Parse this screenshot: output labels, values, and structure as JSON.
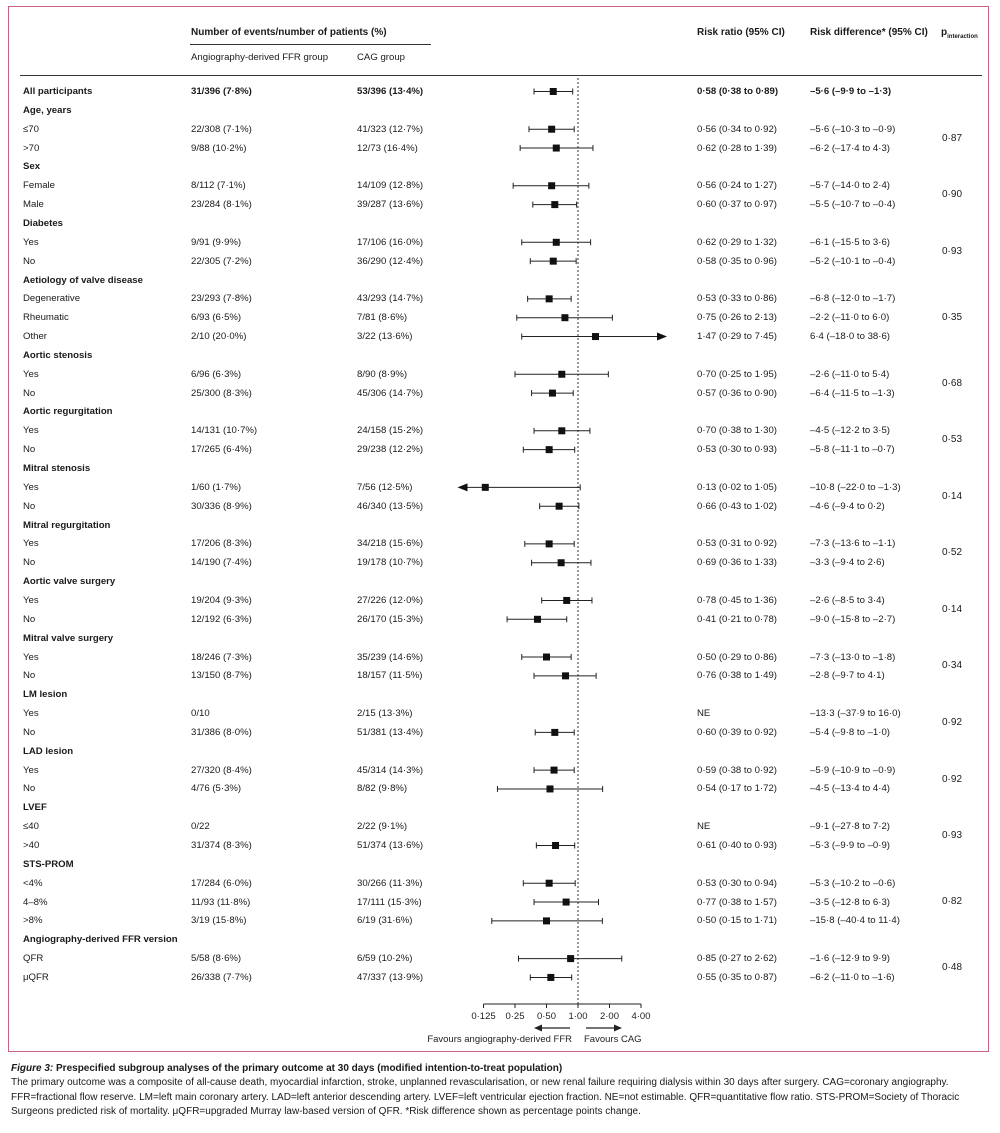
{
  "headers": {
    "events": "Number of events/number of patients (%)",
    "ffr_group": "Angiography-derived FFR group",
    "cag_group": "CAG group",
    "risk_ratio": "Risk ratio (95% CI)",
    "risk_difference": "Risk difference* (95% CI)",
    "p_interaction_main": "p",
    "p_interaction_sub": "interaction"
  },
  "rows": [
    {
      "type": "data",
      "bold": true,
      "label": "All participants",
      "ffr": "31/396 (7·8%)",
      "cag": "53/396 (13·4%)",
      "rr": "0·58 (0·38 to 0·89)",
      "rd": "–5·6 (–9·9 to –1·3)"
    },
    {
      "type": "head",
      "label": "Age, years"
    },
    {
      "type": "data",
      "label": "≤70",
      "ffr": "22/308 (7·1%)",
      "cag": "41/323 (12·7%)",
      "rr": "0·56 (0·34 to 0·92)",
      "rd": "–5·6 (–10·3 to –0·9)"
    },
    {
      "type": "data",
      "label": ">70",
      "ffr": "9/88 (10·2%)",
      "cag": "12/73 (16·4%)",
      "rr": "0·62 (0·28 to 1·39)",
      "rd": "–6·2 (–17·4 to 4·3)"
    },
    {
      "type": "head",
      "label": "Sex"
    },
    {
      "type": "data",
      "label": "Female",
      "ffr": "8/112 (7·1%)",
      "cag": "14/109 (12·8%)",
      "rr": "0·56 (0·24 to 1·27)",
      "rd": "–5·7 (–14·0 to 2·4)"
    },
    {
      "type": "data",
      "label": "Male",
      "ffr": "23/284 (8·1%)",
      "cag": "39/287 (13·6%)",
      "rr": "0·60 (0·37 to 0·97)",
      "rd": "–5·5 (–10·7 to –0·4)"
    },
    {
      "type": "head",
      "label": "Diabetes"
    },
    {
      "type": "data",
      "label": "Yes",
      "ffr": "9/91 (9·9%)",
      "cag": "17/106 (16·0%)",
      "rr": "0·62 (0·29 to 1·32)",
      "rd": "–6·1 (–15·5 to 3·6)"
    },
    {
      "type": "data",
      "label": "No",
      "ffr": "22/305 (7·2%)",
      "cag": "36/290 (12·4%)",
      "rr": "0·58 (0·35 to 0·96)",
      "rd": "–5·2 (–10·1 to –0·4)"
    },
    {
      "type": "head",
      "label": "Aetiology of valve disease"
    },
    {
      "type": "data",
      "label": "Degenerative",
      "ffr": "23/293 (7·8%)",
      "cag": "43/293 (14·7%)",
      "rr": "0·53 (0·33 to 0·86)",
      "rd": "–6·8 (–12·0 to –1·7)"
    },
    {
      "type": "data",
      "label": "Rheumatic",
      "ffr": "6/93 (6·5%)",
      "cag": "7/81 (8·6%)",
      "rr": "0·75 (0·26 to 2·13)",
      "rd": "–2·2 (–11·0 to 6·0)"
    },
    {
      "type": "data",
      "label": "Other",
      "ffr": "2/10 (20·0%)",
      "cag": "3/22 (13·6%)",
      "rr": "1·47 (0·29 to 7·45)",
      "rd": "6·4 (–18·0 to 38·6)"
    },
    {
      "type": "head",
      "label": "Aortic stenosis"
    },
    {
      "type": "data",
      "label": "Yes",
      "ffr": "6/96 (6·3%)",
      "cag": "8/90 (8·9%)",
      "rr": "0·70 (0·25 to 1·95)",
      "rd": "–2·6 (–11·0 to 5·4)"
    },
    {
      "type": "data",
      "label": "No",
      "ffr": "25/300 (8·3%)",
      "cag": "45/306 (14·7%)",
      "rr": "0·57 (0·36 to 0·90)",
      "rd": "–6·4 (–11·5 to –1·3)"
    },
    {
      "type": "head",
      "label": "Aortic regurgitation"
    },
    {
      "type": "data",
      "label": "Yes",
      "ffr": "14/131 (10·7%)",
      "cag": "24/158 (15·2%)",
      "rr": "0·70 (0·38 to 1·30)",
      "rd": "–4·5 (–12·2 to 3·5)"
    },
    {
      "type": "data",
      "label": "No",
      "ffr": "17/265 (6·4%)",
      "cag": "29/238 (12·2%)",
      "rr": "0·53 (0·30 to 0·93)",
      "rd": "–5·8 (–11·1 to –0·7)"
    },
    {
      "type": "head",
      "label": "Mitral stenosis"
    },
    {
      "type": "data",
      "label": "Yes",
      "ffr": "1/60 (1·7%)",
      "cag": "7/56 (12·5%)",
      "rr": "0·13 (0·02 to 1·05)",
      "rd": "–10·8 (–22·0 to –1·3)"
    },
    {
      "type": "data",
      "label": "No",
      "ffr": "30/336 (8·9%)",
      "cag": "46/340 (13·5%)",
      "rr": "0·66 (0·43 to 1·02)",
      "rd": "–4·6 (–9·4 to 0·2)"
    },
    {
      "type": "head",
      "label": "Mitral regurgitation"
    },
    {
      "type": "data",
      "label": "Yes",
      "ffr": "17/206 (8·3%)",
      "cag": "34/218 (15·6%)",
      "rr": "0·53 (0·31 to 0·92)",
      "rd": "–7·3 (–13·6 to –1·1)"
    },
    {
      "type": "data",
      "label": "No",
      "ffr": "14/190 (7·4%)",
      "cag": "19/178 (10·7%)",
      "rr": "0·69 (0·36 to 1·33)",
      "rd": "–3·3 (–9·4 to 2·6)"
    },
    {
      "type": "head",
      "label": "Aortic valve surgery"
    },
    {
      "type": "data",
      "label": "Yes",
      "ffr": "19/204 (9·3%)",
      "cag": "27/226 (12·0%)",
      "rr": "0·78 (0·45 to 1·36)",
      "rd": "–2·6 (–8·5 to 3·4)"
    },
    {
      "type": "data",
      "label": "No",
      "ffr": "12/192 (6·3%)",
      "cag": "26/170 (15·3%)",
      "rr": "0·41 (0·21 to 0·78)",
      "rd": "–9·0 (–15·8 to –2·7)"
    },
    {
      "type": "head",
      "label": "Mitral valve surgery"
    },
    {
      "type": "data",
      "label": "Yes",
      "ffr": "18/246 (7·3%)",
      "cag": "35/239 (14·6%)",
      "rr": "0·50 (0·29 to 0·86)",
      "rd": "–7·3 (–13·0 to –1·8)"
    },
    {
      "type": "data",
      "label": "No",
      "ffr": "13/150 (8·7%)",
      "cag": "18/157 (11·5%)",
      "rr": "0·76 (0·38 to 1·49)",
      "rd": "–2·8 (–9·7 to 4·1)"
    },
    {
      "type": "head",
      "label": "LM lesion"
    },
    {
      "type": "data",
      "label": "Yes",
      "ffr": "0/10",
      "cag": "2/15 (13·3%)",
      "rr": "NE",
      "rd": "–13·3 (–37·9 to 16·0)"
    },
    {
      "type": "data",
      "label": "No",
      "ffr": "31/386 (8·0%)",
      "cag": "51/381 (13·4%)",
      "rr": "0·60 (0·39 to 0·92)",
      "rd": "–5·4 (–9·8 to –1·0)"
    },
    {
      "type": "head",
      "label": "LAD lesion"
    },
    {
      "type": "data",
      "label": "Yes",
      "ffr": "27/320 (8·4%)",
      "cag": "45/314 (14·3%)",
      "rr": "0·59 (0·38 to 0·92)",
      "rd": "–5·9 (–10·9 to –0·9)"
    },
    {
      "type": "data",
      "label": "No",
      "ffr": "4/76 (5·3%)",
      "cag": "8/82 (9·8%)",
      "rr": "0·54 (0·17 to 1·72)",
      "rd": "–4·5 (–13·4 to 4·4)"
    },
    {
      "type": "head",
      "label": "LVEF"
    },
    {
      "type": "data",
      "label": "≤40",
      "ffr": "0/22",
      "cag": "2/22 (9·1%)",
      "rr": "NE",
      "rd": "–9·1 (–27·8 to 7·2)"
    },
    {
      "type": "data",
      "label": ">40",
      "ffr": "31/374 (8·3%)",
      "cag": "51/374 (13·6%)",
      "rr": "0·61 (0·40 to 0·93)",
      "rd": "–5·3 (–9·9 to –0·9)"
    },
    {
      "type": "head",
      "label": "STS-PROM"
    },
    {
      "type": "data",
      "label": "<4%",
      "ffr": "17/284 (6·0%)",
      "cag": "30/266 (11·3%)",
      "rr": "0·53 (0·30 to 0·94)",
      "rd": "–5·3 (–10·2 to –0·6)"
    },
    {
      "type": "data",
      "label": "4–8%",
      "ffr": "11/93 (11·8%)",
      "cag": "17/111 (15·3%)",
      "rr": "0·77 (0·38 to 1·57)",
      "rd": "–3·5 (–12·8 to 6·3)"
    },
    {
      "type": "data",
      "label": ">8%",
      "ffr": "3/19 (15·8%)",
      "cag": "6/19 (31·6%)",
      "rr": "0·50 (0·15 to 1·71)",
      "rd": "–15·8 (–40·4 to 11·4)"
    },
    {
      "type": "head",
      "label": "Angiography-derived FFR version"
    },
    {
      "type": "data",
      "label": "QFR",
      "ffr": "5/58 (8·6%)",
      "cag": "6/59 (10·2%)",
      "rr": "0·85 (0·27 to 2·62)",
      "rd": "–1·6 (–12·9 to 9·9)"
    },
    {
      "type": "data",
      "label": "μQFR",
      "ffr": "26/338 (7·7%)",
      "cag": "47/337 (13·9%)",
      "rr": "0·55 (0·35 to 0·87)",
      "rd": "–6·2 (–11·0 to –1·6)"
    }
  ],
  "p_interactions": [
    {
      "value": "0·87",
      "rows": [
        2,
        3
      ]
    },
    {
      "value": "0·90",
      "rows": [
        5,
        6
      ]
    },
    {
      "value": "0·93",
      "rows": [
        8,
        9
      ]
    },
    {
      "value": "0·35",
      "rows": [
        11,
        12,
        13
      ]
    },
    {
      "value": "0·68",
      "rows": [
        15,
        16
      ]
    },
    {
      "value": "0·53",
      "rows": [
        18,
        19
      ]
    },
    {
      "value": "0·14",
      "rows": [
        21,
        22
      ]
    },
    {
      "value": "0·52",
      "rows": [
        24,
        25
      ]
    },
    {
      "value": "0·14",
      "rows": [
        27,
        28
      ]
    },
    {
      "value": "0·34",
      "rows": [
        30,
        31
      ]
    },
    {
      "value": "0·92",
      "rows": [
        33,
        34
      ]
    },
    {
      "value": "0·92",
      "rows": [
        36,
        37
      ]
    },
    {
      "value": "0·93",
      "rows": [
        39,
        40
      ]
    },
    {
      "value": "0·82",
      "rows": [
        42,
        43,
        44
      ]
    },
    {
      "value": "0·48",
      "rows": [
        46,
        47
      ]
    }
  ],
  "chart_data": {
    "type": "forest",
    "x_scale": "log2",
    "reference_line": 1.0,
    "ticks": [
      {
        "value": 0.125,
        "label": "0·125"
      },
      {
        "value": 0.25,
        "label": "0·25"
      },
      {
        "value": 0.5,
        "label": "0·50"
      },
      {
        "value": 1.0,
        "label": "1·00"
      },
      {
        "value": 2.0,
        "label": "2·00"
      },
      {
        "value": 4.0,
        "label": "4·00"
      }
    ],
    "points": [
      {
        "row": 0,
        "rr": 0.58,
        "lo": 0.38,
        "hi": 0.89
      },
      {
        "row": 2,
        "rr": 0.56,
        "lo": 0.34,
        "hi": 0.92
      },
      {
        "row": 3,
        "rr": 0.62,
        "lo": 0.28,
        "hi": 1.39
      },
      {
        "row": 5,
        "rr": 0.56,
        "lo": 0.24,
        "hi": 1.27
      },
      {
        "row": 6,
        "rr": 0.6,
        "lo": 0.37,
        "hi": 0.97
      },
      {
        "row": 8,
        "rr": 0.62,
        "lo": 0.29,
        "hi": 1.32
      },
      {
        "row": 9,
        "rr": 0.58,
        "lo": 0.35,
        "hi": 0.96
      },
      {
        "row": 11,
        "rr": 0.53,
        "lo": 0.33,
        "hi": 0.86
      },
      {
        "row": 12,
        "rr": 0.75,
        "lo": 0.26,
        "hi": 2.13
      },
      {
        "row": 13,
        "rr": 1.47,
        "lo": 0.29,
        "hi": 7.45
      },
      {
        "row": 15,
        "rr": 0.7,
        "lo": 0.25,
        "hi": 1.95
      },
      {
        "row": 16,
        "rr": 0.57,
        "lo": 0.36,
        "hi": 0.9
      },
      {
        "row": 18,
        "rr": 0.7,
        "lo": 0.38,
        "hi": 1.3
      },
      {
        "row": 19,
        "rr": 0.53,
        "lo": 0.3,
        "hi": 0.93
      },
      {
        "row": 21,
        "rr": 0.13,
        "lo": 0.02,
        "hi": 1.05
      },
      {
        "row": 22,
        "rr": 0.66,
        "lo": 0.43,
        "hi": 1.02
      },
      {
        "row": 24,
        "rr": 0.53,
        "lo": 0.31,
        "hi": 0.92
      },
      {
        "row": 25,
        "rr": 0.69,
        "lo": 0.36,
        "hi": 1.33
      },
      {
        "row": 27,
        "rr": 0.78,
        "lo": 0.45,
        "hi": 1.36
      },
      {
        "row": 28,
        "rr": 0.41,
        "lo": 0.21,
        "hi": 0.78
      },
      {
        "row": 30,
        "rr": 0.5,
        "lo": 0.29,
        "hi": 0.86
      },
      {
        "row": 31,
        "rr": 0.76,
        "lo": 0.38,
        "hi": 1.49
      },
      {
        "row": 34,
        "rr": 0.6,
        "lo": 0.39,
        "hi": 0.92
      },
      {
        "row": 36,
        "rr": 0.59,
        "lo": 0.38,
        "hi": 0.92
      },
      {
        "row": 37,
        "rr": 0.54,
        "lo": 0.17,
        "hi": 1.72
      },
      {
        "row": 40,
        "rr": 0.61,
        "lo": 0.4,
        "hi": 0.93
      },
      {
        "row": 42,
        "rr": 0.53,
        "lo": 0.3,
        "hi": 0.94
      },
      {
        "row": 43,
        "rr": 0.77,
        "lo": 0.38,
        "hi": 1.57
      },
      {
        "row": 44,
        "rr": 0.5,
        "lo": 0.15,
        "hi": 1.71
      },
      {
        "row": 46,
        "rr": 0.85,
        "lo": 0.27,
        "hi": 2.62
      },
      {
        "row": 47,
        "rr": 0.55,
        "lo": 0.35,
        "hi": 0.87
      }
    ],
    "favours_left": "Favours angiography-derived FFR",
    "favours_right": "Favours CAG"
  },
  "caption": {
    "figure_label": "Figure 3:",
    "title": "Prespecified subgroup analyses of the primary outcome at 30 days (modified intention-to-treat population)",
    "body": "The primary outcome was a composite of all-cause death, myocardial infarction, stroke, unplanned revascularisation, or new renal failure requiring dialysis within 30 days after surgery. CAG=coronary angiography. FFR=fractional flow reserve. LM=left main coronary artery. LAD=left anterior descending artery. LVEF=left ventricular ejection fraction. NE=not estimable. QFR=quantitative flow ratio. STS-PROM=Society of Thoracic Surgeons predicted risk of mortality. μQFR=upgraded Murray law-based version of QFR. *Risk difference shown as percentage points change."
  }
}
